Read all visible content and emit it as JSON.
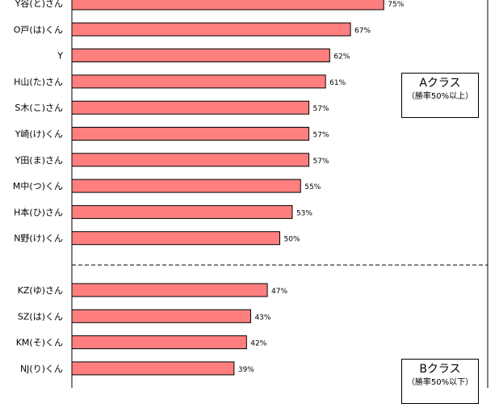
{
  "chart_data": {
    "type": "bar",
    "orientation": "horizontal",
    "value_suffix": "%",
    "bar_color": "#ff7f7f",
    "categories": [
      "Y谷(と)さん",
      "O戸(は)くん",
      "Y",
      "H山(た)さん",
      "S木(こ)さん",
      "Y崎(け)くん",
      "Y田(ま)さん",
      "M中(つ)くん",
      "H本(ひ)さん",
      "N野(け)くん",
      "KZ(ゆ)さん",
      "SZ(は)くん",
      "KM(そ)くん",
      "NJ(り)くん"
    ],
    "values": [
      75,
      67,
      62,
      61,
      57,
      57,
      57,
      55,
      53,
      50,
      47,
      43,
      42,
      39
    ],
    "xlim": [
      0,
      100
    ],
    "groups": [
      {
        "name": "Aクラス",
        "note": "（勝率50%以上）",
        "divider_after_index": 9
      },
      {
        "name": "Bクラス",
        "note": "（勝率50%以下）"
      }
    ]
  }
}
